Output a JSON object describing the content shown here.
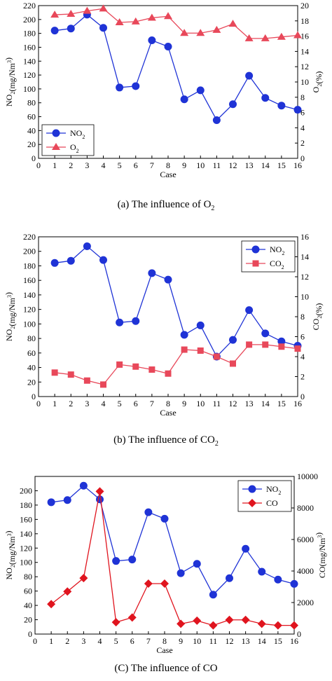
{
  "captions": [
    {
      "prefix": "(a) The influence of O",
      "sub": "2"
    },
    {
      "prefix": "(b) The influence of CO",
      "sub": "2"
    },
    {
      "prefix": "(C) The influence of CO",
      "sub": ""
    }
  ],
  "chart_data": [
    {
      "type": "line",
      "xlabel": "Case",
      "ylabel_left": "NO2(mg/Nm3)",
      "ylabel_right": "O2(%)",
      "x": [
        1,
        2,
        3,
        4,
        5,
        6,
        7,
        8,
        9,
        10,
        11,
        12,
        13,
        14,
        15,
        16
      ],
      "xlim": [
        0,
        16
      ],
      "xticks": [
        0,
        1,
        2,
        3,
        4,
        5,
        6,
        7,
        8,
        9,
        10,
        11,
        12,
        13,
        14,
        15,
        16
      ],
      "ylim_left": [
        0,
        220
      ],
      "yticks_left": [
        0,
        20,
        40,
        60,
        80,
        100,
        120,
        140,
        160,
        180,
        200,
        220
      ],
      "ylim_right": [
        0,
        20
      ],
      "yticks_right": [
        0,
        2,
        4,
        6,
        8,
        10,
        12,
        14,
        16,
        18,
        20
      ],
      "legend_position": "bottom-left",
      "series": [
        {
          "name": "NO2",
          "axis": "left",
          "color": "#1f33d6",
          "marker": "circle",
          "values": [
            184,
            187,
            207,
            188,
            102,
            104,
            170,
            161,
            85,
            98,
            55,
            78,
            119,
            87,
            76,
            70
          ]
        },
        {
          "name": "O2",
          "axis": "right",
          "color": "#e8485a",
          "marker": "triangle",
          "values": [
            18.8,
            18.9,
            19.3,
            19.6,
            17.8,
            17.9,
            18.4,
            18.6,
            16.4,
            16.4,
            16.8,
            17.6,
            15.7,
            15.7,
            15.9,
            16.1
          ]
        }
      ]
    },
    {
      "type": "line",
      "xlabel": "Case",
      "ylabel_left": "NO2(mg/Nm3)",
      "ylabel_right": "CO2(%)",
      "x": [
        1,
        2,
        3,
        4,
        5,
        6,
        7,
        8,
        9,
        10,
        11,
        12,
        13,
        14,
        15,
        16
      ],
      "xlim": [
        0,
        16
      ],
      "xticks": [
        0,
        1,
        2,
        3,
        4,
        5,
        6,
        7,
        8,
        9,
        10,
        11,
        12,
        13,
        14,
        15,
        16
      ],
      "ylim_left": [
        0,
        220
      ],
      "yticks_left": [
        0,
        20,
        40,
        60,
        80,
        100,
        120,
        140,
        160,
        180,
        200,
        220
      ],
      "ylim_right": [
        0,
        16
      ],
      "yticks_right": [
        0,
        2,
        4,
        6,
        8,
        10,
        12,
        14,
        16
      ],
      "legend_position": "top-right",
      "series": [
        {
          "name": "NO2",
          "axis": "left",
          "color": "#1f33d6",
          "marker": "circle",
          "values": [
            184,
            187,
            207,
            188,
            102,
            104,
            170,
            161,
            85,
            98,
            55,
            78,
            119,
            87,
            76,
            70
          ]
        },
        {
          "name": "CO2",
          "axis": "right",
          "color": "#e8485a",
          "marker": "square",
          "values": [
            2.4,
            2.2,
            1.6,
            1.2,
            3.2,
            3.0,
            2.7,
            2.3,
            4.7,
            4.6,
            4.0,
            3.3,
            5.2,
            5.2,
            5.0,
            4.8
          ]
        }
      ]
    },
    {
      "type": "line",
      "xlabel": "Case",
      "ylabel_left": "NO2(mg/Nm3)",
      "ylabel_right": "CO(mg/Nm3)",
      "x": [
        1,
        2,
        3,
        4,
        5,
        6,
        7,
        8,
        9,
        10,
        11,
        12,
        13,
        14,
        15,
        16
      ],
      "xlim": [
        0,
        16
      ],
      "xticks": [
        0,
        1,
        2,
        3,
        4,
        5,
        6,
        7,
        8,
        9,
        10,
        11,
        12,
        13,
        14,
        15,
        16
      ],
      "ylim_left": [
        0,
        220
      ],
      "yticks_left": [
        0,
        20,
        40,
        60,
        80,
        100,
        120,
        140,
        160,
        180,
        200
      ],
      "ylim_right": [
        0,
        10000
      ],
      "yticks_right": [
        0,
        2000,
        4000,
        6000,
        8000,
        10000
      ],
      "legend_position": "top-right",
      "series": [
        {
          "name": "NO2",
          "axis": "left",
          "color": "#1f33d6",
          "marker": "circle",
          "values": [
            184,
            187,
            207,
            188,
            102,
            104,
            170,
            161,
            85,
            98,
            55,
            78,
            119,
            87,
            76,
            70
          ]
        },
        {
          "name": "CO",
          "axis": "right",
          "color": "#e0141e",
          "marker": "diamond",
          "values": [
            1900,
            2700,
            3550,
            9050,
            750,
            1050,
            3200,
            3200,
            650,
            850,
            550,
            900,
            900,
            650,
            550,
            550
          ]
        }
      ]
    }
  ]
}
